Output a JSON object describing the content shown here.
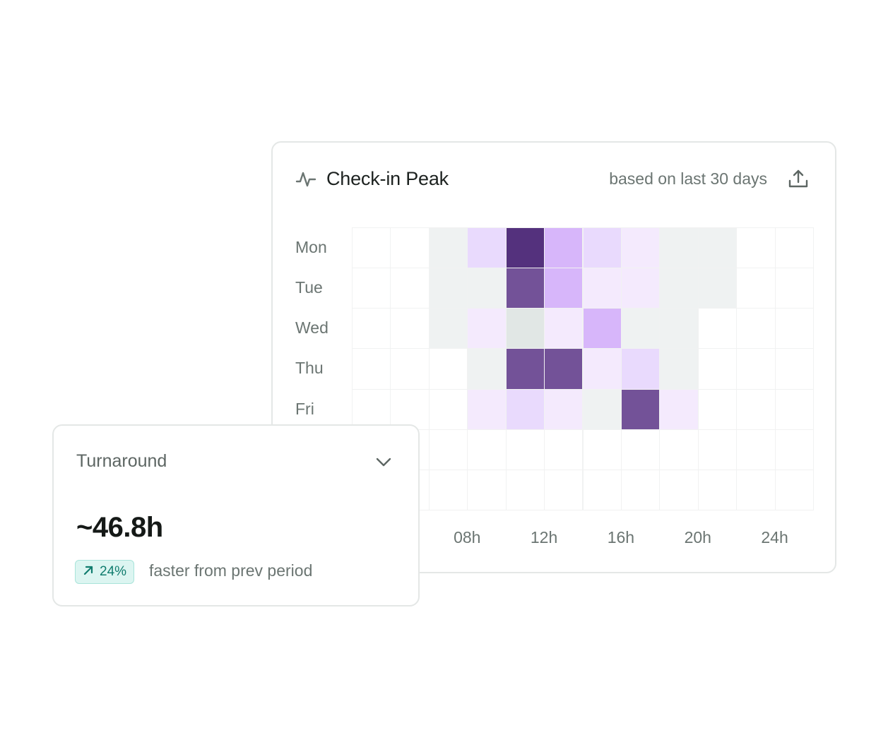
{
  "peak_card": {
    "title": "Check-in Peak",
    "subtitle": "based on last 30 days",
    "icon": "activity-icon",
    "export_icon": "export-icon"
  },
  "turnaround": {
    "title": "Turnaround",
    "value": "~46.8h",
    "change": "24%",
    "change_icon": "arrow-up-right-icon",
    "note": "faster from prev period",
    "chevron_icon": "chevron-down-icon"
  },
  "chart_data": {
    "type": "heatmap",
    "rows": [
      "Mon",
      "Tue",
      "Wed",
      "Thu",
      "Fri",
      "",
      ""
    ],
    "row_labels_visible": [
      "Mon",
      "Tue",
      "Wed",
      "Thu",
      "Fri"
    ],
    "x_tick_labels": [
      "08h",
      "12h",
      "16h",
      "20h",
      "24h"
    ],
    "columns": 12,
    "values": [
      [
        0,
        0,
        1,
        3,
        9,
        5,
        3,
        2,
        1,
        1,
        0,
        0
      ],
      [
        0,
        0,
        1,
        1,
        7,
        5,
        2,
        2,
        1,
        1,
        0,
        0
      ],
      [
        0,
        0,
        1,
        2,
        1.5,
        2,
        5,
        1,
        1,
        0,
        0,
        0
      ],
      [
        0,
        0,
        0,
        1,
        7,
        7,
        2,
        3,
        1,
        0,
        0,
        0
      ],
      [
        0,
        0,
        0,
        2,
        3,
        2,
        1,
        7,
        2,
        0,
        0,
        0
      ],
      [
        0,
        0,
        0,
        0,
        0,
        0,
        0,
        0,
        0,
        0,
        0,
        0
      ],
      [
        0,
        0,
        0,
        0,
        0,
        0,
        0,
        0,
        0,
        0,
        0,
        0
      ]
    ],
    "colors": {
      "0": "#ffffff",
      "1": "#eff2f2",
      "1.5": "#e1e7e5",
      "2": "#f4eafd",
      "3": "#e9dafd",
      "5": "#d7b6fa",
      "7": "#735298",
      "9": "#54317d"
    }
  }
}
